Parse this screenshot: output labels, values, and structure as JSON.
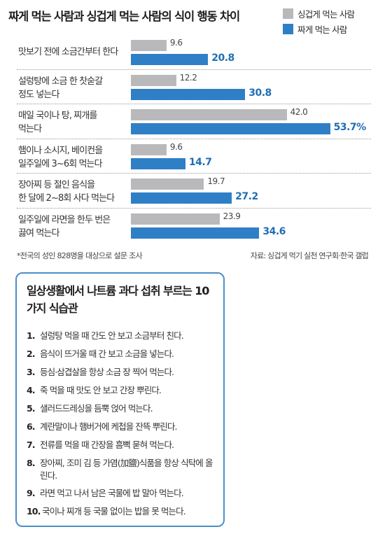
{
  "title": "짜게 먹는 사람과 싱겁게 먹는 사람의 식이 행동 차이",
  "legend": [
    {
      "label": "싱겁게 먹는 사람",
      "color": "#b9b9bb"
    },
    {
      "label": "짜게 먹는 사람",
      "color": "#2f7fc6"
    }
  ],
  "chart_data": {
    "type": "bar",
    "orientation": "horizontal",
    "title": "짜게 먹는 사람과 싱겁게 먹는 사람의 식이 행동 차이",
    "categories": [
      [
        "맛보기 전에 소금간부터 한다"
      ],
      [
        "설렁탕에 소금 한 찻숟갈",
        "정도 넣는다"
      ],
      [
        "매일 국이나 탕, 찌개를",
        "먹는다"
      ],
      [
        "햄이나 소시지, 베이컨을",
        "일주일에 3~6회 먹는다"
      ],
      [
        "장아찌 등 절인 음식을",
        "한 달에 2~8회 사다 먹는다"
      ],
      [
        "일주일에 라면을 한두 번은",
        "끓여 먹는다"
      ]
    ],
    "series": [
      {
        "name": "싱겁게 먹는 사람",
        "values": [
          9.6,
          12.2,
          42.0,
          9.6,
          19.7,
          23.9
        ],
        "labels": [
          "9.6",
          "12.2",
          "42.0",
          "9.6",
          "19.7",
          "23.9"
        ]
      },
      {
        "name": "짜게 먹는 사람",
        "values": [
          20.8,
          30.8,
          53.7,
          14.7,
          27.2,
          34.6
        ],
        "labels": [
          "20.8",
          "30.8",
          "53.7%",
          "14.7",
          "27.2",
          "34.6"
        ]
      }
    ],
    "unit": "%",
    "xlim": [
      0,
      60
    ],
    "legend_position": "top-right",
    "grid": false
  },
  "footnote": "*전국의 성인 828명을 대상으로 설문 조사",
  "source": "자료: 싱겁게 먹기 실천 연구회·한국 갤럽",
  "habits": {
    "title": "일상생활에서 나트륨 과다 섭취 부르는 10가지 식습관",
    "items": [
      {
        "num": "1.",
        "text": "설렁탕 먹을 때 간도 안 보고 소금부터 친다."
      },
      {
        "num": "2.",
        "text": "음식이 뜨거울 때 간 보고 소금을 넣는다."
      },
      {
        "num": "3.",
        "text": "등심·삼겹살을 항상 소금 장 찍어 먹는다."
      },
      {
        "num": "4.",
        "text": "죽 먹을 때 맛도 안 보고 간장 뿌린다."
      },
      {
        "num": "5.",
        "text": "샐러드드레싱을 듬뿍 얹어 먹는다."
      },
      {
        "num": "6.",
        "text": "계란말이나 햄버거에 케첩을 잔뜩 뿌린다."
      },
      {
        "num": "7.",
        "text": "전류를 먹을 때 간장을 흠뻑 묻혀 먹는다."
      },
      {
        "num": "8.",
        "text": "장아찌, 조미 김 등 가염(加鹽)식품을 항상 식탁에 올린다."
      },
      {
        "num": "9.",
        "text": "라면 먹고 나서 남은 국물에 밥 말아 먹는다."
      },
      {
        "num": "10.",
        "text": "국이나 찌개 등 국물 없이는 밥을 못 먹는다."
      }
    ]
  }
}
